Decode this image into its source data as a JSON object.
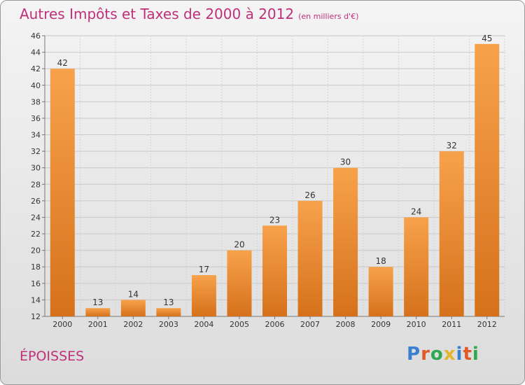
{
  "title": "Autres Impôts et Taxes de 2000 à 2012",
  "subtitle": "(en milliers d'€)",
  "commune": "ÉPOISSES",
  "logo": {
    "text": "Proxiti",
    "letter_colors": [
      "#3a7fd0",
      "#e05a2b",
      "#2fa84f",
      "#e0b62b",
      "#3a7fd0",
      "#e05a2b",
      "#2fa84f"
    ]
  },
  "colors": {
    "bar_top": "#f7a24b",
    "bar_bottom": "#d6711b",
    "title": "#c0307a"
  },
  "chart_data": {
    "type": "bar",
    "categories": [
      "2000",
      "2001",
      "2002",
      "2003",
      "2004",
      "2005",
      "2006",
      "2007",
      "2008",
      "2009",
      "2010",
      "2011",
      "2012"
    ],
    "values": [
      42,
      13,
      14,
      13,
      17,
      20,
      23,
      26,
      30,
      18,
      24,
      32,
      45
    ],
    "ylim": [
      12,
      46
    ],
    "yticks": [
      12,
      14,
      16,
      18,
      20,
      22,
      24,
      26,
      28,
      30,
      32,
      34,
      36,
      38,
      40,
      42,
      44,
      46
    ],
    "grid": true
  }
}
